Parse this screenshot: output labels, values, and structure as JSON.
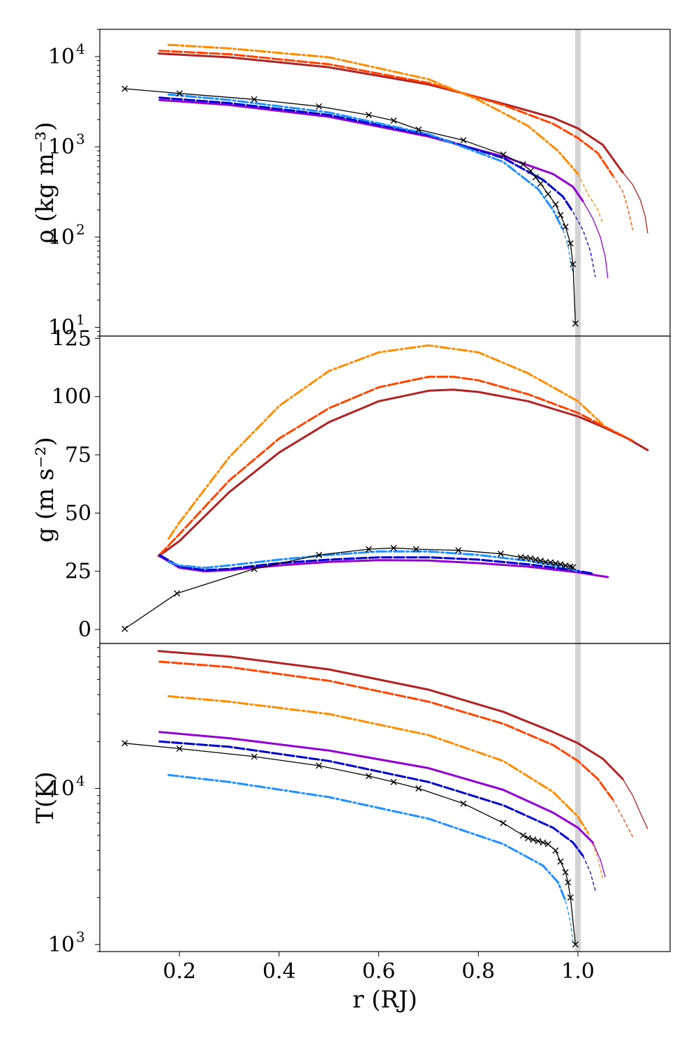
{
  "chart_data": [
    {
      "type": "line",
      "panel": "density",
      "ylabel": "ρ (kg m⁻³)",
      "yscale": "log",
      "ylim": [
        8,
        20000
      ],
      "xlim": [
        0.04,
        1.185
      ],
      "ytick_labels": [
        {
          "value": 10,
          "base": "10",
          "exp": "1"
        },
        {
          "value": 100,
          "base": "10",
          "exp": "2"
        },
        {
          "value": 1000,
          "base": "10",
          "exp": "3"
        },
        {
          "value": 10000,
          "base": "10",
          "exp": "4"
        }
      ],
      "series": [
        {
          "name": "dark red solid",
          "color": "#b22222",
          "style": "solid",
          "x": [
            0.158,
            0.3,
            0.5,
            0.7,
            0.85,
            0.95,
            1.0,
            1.05,
            1.09
          ],
          "y": [
            10800,
            9800,
            7600,
            4900,
            3000,
            2100,
            1600,
            1050,
            520
          ],
          "x_thin": [
            1.09,
            1.11,
            1.125,
            1.135,
            1.14
          ],
          "y_thin": [
            520,
            380,
            260,
            170,
            110
          ]
        },
        {
          "name": "orange-red dashed",
          "color": "#ff4500",
          "style": "dashed",
          "x": [
            0.16,
            0.3,
            0.5,
            0.7,
            0.85,
            0.95,
            1.0,
            1.04,
            1.07
          ],
          "y": [
            11600,
            10600,
            8200,
            5100,
            2900,
            1800,
            1250,
            850,
            480
          ],
          "x_thin": [
            1.07,
            1.09,
            1.1,
            1.11
          ],
          "y_thin": [
            480,
            320,
            210,
            120
          ]
        },
        {
          "name": "orange dash-dot",
          "color": "#ff8c00",
          "style": "dashdot",
          "x": [
            0.178,
            0.3,
            0.5,
            0.7,
            0.8,
            0.9,
            0.96,
            1.0
          ],
          "y": [
            13500,
            12300,
            9800,
            5600,
            3300,
            1700,
            900,
            500
          ],
          "x_thin": [
            1.0,
            1.02,
            1.04,
            1.05
          ],
          "y_thin": [
            500,
            300,
            200,
            140
          ]
        },
        {
          "name": "purple solid",
          "color": "#9400d3",
          "style": "solid",
          "x": [
            0.16,
            0.3,
            0.5,
            0.7,
            0.85,
            0.95,
            0.99,
            1.01
          ],
          "y": [
            3300,
            2900,
            2150,
            1300,
            780,
            500,
            360,
            250
          ],
          "x_thin": [
            1.01,
            1.03,
            1.045,
            1.055,
            1.06
          ],
          "y_thin": [
            250,
            160,
            100,
            60,
            35
          ]
        },
        {
          "name": "blue dashed",
          "color": "#0000cd",
          "style": "dashed",
          "x": [
            0.16,
            0.3,
            0.5,
            0.7,
            0.85,
            0.93,
            0.97,
            0.99
          ],
          "y": [
            3500,
            3050,
            2250,
            1350,
            750,
            430,
            280,
            190
          ],
          "x_thin": [
            0.99,
            1.01,
            1.025,
            1.035
          ],
          "y_thin": [
            190,
            120,
            70,
            36
          ]
        },
        {
          "name": "light blue dash-dot",
          "color": "#1e90ff",
          "style": "dashdot",
          "x": [
            0.178,
            0.3,
            0.5,
            0.7,
            0.85,
            0.92,
            0.95,
            0.97
          ],
          "y": [
            3800,
            3300,
            2400,
            1380,
            680,
            340,
            200,
            120
          ],
          "x_thin": [
            0.97,
            0.98,
            0.985,
            0.99
          ],
          "y_thin": [
            120,
            80,
            55,
            40
          ]
        },
        {
          "name": "black reference (crosses)",
          "color": "#000000",
          "style": "markers",
          "x": [
            0.09,
            0.2,
            0.35,
            0.48,
            0.58,
            0.63,
            0.68,
            0.77,
            0.85,
            0.89,
            0.905,
            0.915,
            0.925,
            0.94,
            0.955,
            0.965,
            0.975,
            0.985,
            0.99,
            0.995
          ],
          "y": [
            4400,
            3900,
            3350,
            2800,
            2250,
            1950,
            1550,
            1180,
            820,
            640,
            540,
            460,
            390,
            300,
            230,
            175,
            130,
            85,
            50,
            11
          ]
        }
      ]
    },
    {
      "type": "line",
      "panel": "gravity",
      "ylabel": "g (m s⁻²)",
      "yscale": "linear",
      "ylim": [
        -6,
        126
      ],
      "xlim": [
        0.04,
        1.185
      ],
      "yticks": [
        "0",
        "25",
        "50",
        "75",
        "100",
        "125"
      ],
      "series": [
        {
          "name": "dark red solid",
          "color": "#b22222",
          "style": "solid",
          "x": [
            0.158,
            0.2,
            0.3,
            0.4,
            0.5,
            0.6,
            0.7,
            0.75,
            0.8,
            0.9,
            1.0,
            1.05,
            1.1,
            1.14
          ],
          "y": [
            31.5,
            38,
            59,
            76,
            89,
            98,
            102.5,
            103,
            102,
            98,
            91.5,
            87,
            82,
            77
          ]
        },
        {
          "name": "orange-red dashed",
          "color": "#ff4500",
          "style": "dashed",
          "x": [
            0.16,
            0.2,
            0.3,
            0.4,
            0.5,
            0.6,
            0.7,
            0.75,
            0.8,
            0.9,
            1.0,
            1.05,
            1.11
          ],
          "y": [
            32,
            41,
            64,
            82,
            95,
            104,
            108.5,
            108.5,
            107,
            101,
            93,
            87.5,
            81
          ]
        },
        {
          "name": "orange dash-dot",
          "color": "#ff8c00",
          "style": "dashdot",
          "x": [
            0.178,
            0.2,
            0.3,
            0.4,
            0.5,
            0.6,
            0.7,
            0.8,
            0.9,
            1.0,
            1.05
          ],
          "y": [
            39,
            46,
            74,
            96,
            111,
            119,
            122,
            119,
            110,
            98,
            88
          ]
        },
        {
          "name": "purple solid",
          "color": "#9400d3",
          "style": "solid",
          "x": [
            0.16,
            0.2,
            0.25,
            0.3,
            0.4,
            0.5,
            0.6,
            0.7,
            0.8,
            0.9,
            1.0,
            1.06
          ],
          "y": [
            31.5,
            26.5,
            25,
            25.5,
            27.5,
            29,
            29.8,
            29.6,
            28.5,
            27,
            24.5,
            22.5
          ]
        },
        {
          "name": "blue dashed",
          "color": "#0000cd",
          "style": "dashed",
          "x": [
            0.16,
            0.2,
            0.25,
            0.3,
            0.4,
            0.5,
            0.6,
            0.7,
            0.8,
            0.9,
            0.99,
            1.03
          ],
          "y": [
            32,
            27,
            25.5,
            26,
            28.5,
            30,
            31,
            31,
            30,
            28,
            25.5,
            24
          ]
        },
        {
          "name": "light blue dash-dot",
          "color": "#1e90ff",
          "style": "dashdot",
          "x": [
            0.178,
            0.2,
            0.25,
            0.3,
            0.4,
            0.5,
            0.6,
            0.7,
            0.8,
            0.9,
            0.97,
            1.0
          ],
          "y": [
            29,
            27.5,
            26.5,
            27.5,
            30,
            32,
            33.5,
            33.5,
            32,
            29.5,
            27,
            25
          ]
        },
        {
          "name": "black reference (crosses)",
          "color": "#000000",
          "style": "markers",
          "x": [
            0.09,
            0.195,
            0.35,
            0.48,
            0.58,
            0.63,
            0.675,
            0.76,
            0.845,
            0.885,
            0.895,
            0.905,
            0.915,
            0.925,
            0.935,
            0.945,
            0.955,
            0.965,
            0.975,
            0.985,
            0.99
          ],
          "y": [
            0.3,
            15.5,
            26,
            32,
            34.5,
            35,
            34.5,
            34,
            32.5,
            31,
            30.8,
            30.5,
            30,
            29.5,
            29,
            28.8,
            28.4,
            28,
            27.5,
            27,
            26.7
          ]
        }
      ]
    },
    {
      "type": "line",
      "panel": "temperature",
      "ylabel": "T(K)",
      "xlabel": "r (RJ)",
      "yscale": "log",
      "ylim": [
        900,
        85000
      ],
      "xlim": [
        0.04,
        1.185
      ],
      "xticks": [
        "0.2",
        "0.4",
        "0.6",
        "0.8",
        "1.0"
      ],
      "ytick_labels": [
        {
          "value": 1000,
          "base": "10",
          "exp": "3"
        },
        {
          "value": 10000,
          "base": "10",
          "exp": "4"
        }
      ],
      "series": [
        {
          "name": "dark red solid",
          "color": "#b22222",
          "style": "solid",
          "x": [
            0.158,
            0.3,
            0.5,
            0.7,
            0.85,
            0.95,
            1.0,
            1.05,
            1.09
          ],
          "y": [
            76000,
            70000,
            58000,
            43000,
            31000,
            23000,
            19500,
            15500,
            11500
          ],
          "x_thin": [
            1.09,
            1.11,
            1.125,
            1.14
          ],
          "y_thin": [
            11500,
            9000,
            7000,
            5500
          ]
        },
        {
          "name": "orange-red dashed",
          "color": "#ff4500",
          "style": "dashed",
          "x": [
            0.16,
            0.3,
            0.5,
            0.7,
            0.85,
            0.95,
            1.0,
            1.04,
            1.07
          ],
          "y": [
            65000,
            60000,
            49000,
            36000,
            26000,
            19000,
            15000,
            11500,
            8500
          ],
          "x_thin": [
            1.07,
            1.09,
            1.11
          ],
          "y_thin": [
            8500,
            6500,
            4900
          ]
        },
        {
          "name": "orange dash-dot",
          "color": "#ff8c00",
          "style": "dashdot",
          "x": [
            0.178,
            0.3,
            0.5,
            0.7,
            0.85,
            0.95,
            1.0,
            1.02
          ],
          "y": [
            39000,
            36000,
            30000,
            22000,
            15000,
            9500,
            6600,
            5200
          ],
          "x_thin": [
            1.02,
            1.04,
            1.05
          ],
          "y_thin": [
            5200,
            3600,
            2600
          ]
        },
        {
          "name": "purple solid",
          "color": "#9400d3",
          "style": "solid",
          "x": [
            0.16,
            0.3,
            0.5,
            0.7,
            0.85,
            0.95,
            1.0,
            1.03
          ],
          "y": [
            23000,
            21000,
            17500,
            13500,
            9800,
            7000,
            5600,
            4500
          ],
          "x_thin": [
            1.03,
            1.045,
            1.055
          ],
          "y_thin": [
            4500,
            3500,
            2700
          ]
        },
        {
          "name": "blue dashed",
          "color": "#0000cd",
          "style": "dashed",
          "x": [
            0.16,
            0.3,
            0.5,
            0.7,
            0.85,
            0.95,
            0.99,
            1.01
          ],
          "y": [
            20000,
            18500,
            15000,
            11000,
            7800,
            5600,
            4500,
            3700
          ],
          "x_thin": [
            1.01,
            1.025,
            1.035
          ],
          "y_thin": [
            3700,
            2900,
            2200
          ]
        },
        {
          "name": "light blue dash-dot",
          "color": "#1e90ff",
          "style": "dashdot",
          "x": [
            0.178,
            0.3,
            0.5,
            0.7,
            0.85,
            0.93,
            0.96,
            0.975
          ],
          "y": [
            12200,
            11000,
            8800,
            6400,
            4400,
            3200,
            2500,
            1900
          ],
          "x_thin": [
            0.975,
            0.985,
            0.99
          ],
          "y_thin": [
            1900,
            1400,
            1000
          ]
        },
        {
          "name": "black reference (crosses)",
          "color": "#000000",
          "style": "markers",
          "x": [
            0.09,
            0.2,
            0.35,
            0.48,
            0.58,
            0.63,
            0.68,
            0.77,
            0.85,
            0.89,
            0.9,
            0.91,
            0.92,
            0.93,
            0.94,
            0.955,
            0.965,
            0.975,
            0.98,
            0.985,
            0.995
          ],
          "y": [
            19500,
            18000,
            16000,
            14000,
            12000,
            11000,
            10000,
            8000,
            6000,
            5000,
            4800,
            4700,
            4600,
            4500,
            4400,
            4000,
            3400,
            2900,
            2500,
            2000,
            1000
          ]
        }
      ]
    }
  ],
  "reference_line": {
    "x": 1.0,
    "color": "#d3d3d3"
  }
}
